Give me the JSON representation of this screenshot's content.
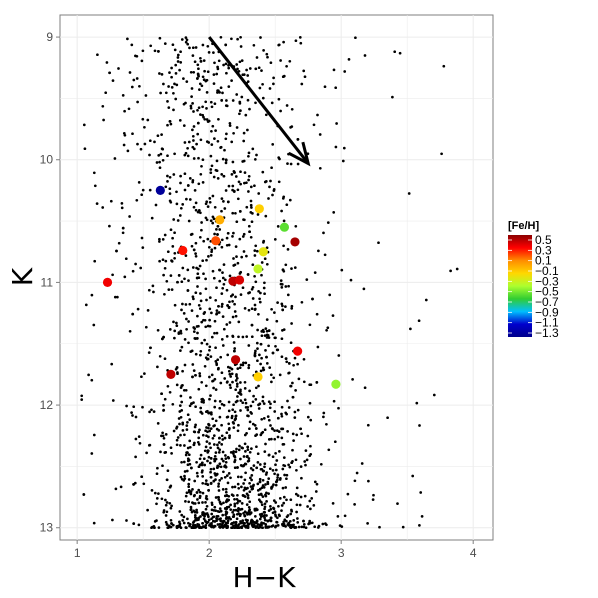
{
  "chart_data": {
    "type": "scatter",
    "title": "",
    "xlabel": "H−K",
    "ylabel": "K",
    "xlim": [
      0.87,
      4.15
    ],
    "ylim": [
      13.1,
      8.82
    ],
    "y_reversed": true,
    "xticks": [
      1,
      2,
      3,
      4
    ],
    "xtick_labels": [
      "1",
      "2",
      "3",
      "4"
    ],
    "yticks": [
      9,
      10,
      11,
      12,
      13
    ],
    "ytick_labels": [
      "9",
      "10",
      "11",
      "12",
      "13"
    ],
    "grid": true,
    "background_points": {
      "color": "#000000",
      "count": 2200,
      "description": "field stars (small black dots)"
    },
    "arrow": {
      "from": [
        2.0,
        9.0
      ],
      "to": [
        2.75,
        10.03
      ]
    },
    "highlighted_points": [
      {
        "x": 1.63,
        "y": 10.25,
        "fe_h": -1.25
      },
      {
        "x": 2.08,
        "y": 10.49,
        "fe_h": -0.05
      },
      {
        "x": 2.38,
        "y": 10.4,
        "fe_h": -0.15
      },
      {
        "x": 2.57,
        "y": 10.55,
        "fe_h": -0.55
      },
      {
        "x": 2.05,
        "y": 10.66,
        "fe_h": 0.15
      },
      {
        "x": 2.65,
        "y": 10.67,
        "fe_h": 0.45
      },
      {
        "x": 1.8,
        "y": 10.74,
        "fe_h": 0.25
      },
      {
        "x": 2.41,
        "y": 10.75,
        "fe_h": -0.25
      },
      {
        "x": 2.37,
        "y": 10.89,
        "fe_h": -0.35
      },
      {
        "x": 2.18,
        "y": 10.99,
        "fe_h": 0.4
      },
      {
        "x": 2.23,
        "y": 10.98,
        "fe_h": 0.35
      },
      {
        "x": 1.23,
        "y": 11.0,
        "fe_h": 0.3
      },
      {
        "x": 2.67,
        "y": 11.56,
        "fe_h": 0.3
      },
      {
        "x": 2.2,
        "y": 11.63,
        "fe_h": 0.4
      },
      {
        "x": 1.71,
        "y": 11.75,
        "fe_h": 0.4
      },
      {
        "x": 2.37,
        "y": 11.77,
        "fe_h": -0.15
      },
      {
        "x": 2.96,
        "y": 11.83,
        "fe_h": -0.45
      }
    ],
    "legend": {
      "title": "[Fe/H]",
      "position": "right",
      "labels": [
        "0.5",
        "0.3",
        "0.1",
        "−0.1",
        "−0.3",
        "−0.5",
        "−0.7",
        "−0.9",
        "−1.1",
        "−1.3"
      ],
      "range": [
        -1.3,
        0.5
      ],
      "colors_high_to_low": [
        "#8b0000",
        "#ff0000",
        "#ff8c00",
        "#ffd700",
        "#adff2f",
        "#32cd32",
        "#00bfff",
        "#0000cd",
        "#00008b"
      ]
    }
  }
}
